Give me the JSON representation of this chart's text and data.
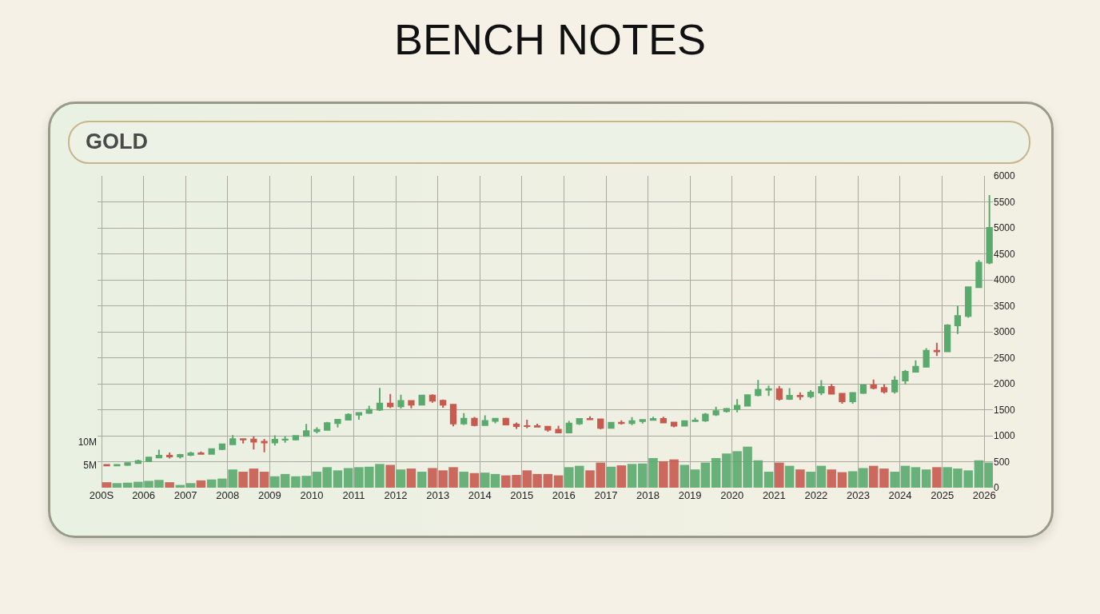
{
  "chart_data": {
    "type": "candlestick",
    "title": "BENCH NOTES",
    "subtitle": "GOLD",
    "x": [
      "2005-02-15",
      "2005-05-15",
      "2005-08-15",
      "2005-11-15",
      "2006-02-15",
      "2006-05-15",
      "2006-08-15",
      "2006-11-15",
      "2007-02-15",
      "2007-05-15",
      "2007-08-15",
      "2007-11-15",
      "2008-02-15",
      "2008-05-15",
      "2008-08-15",
      "2008-11-15",
      "2009-02-15",
      "2009-05-15",
      "2009-08-15",
      "2009-11-15",
      "2010-02-15",
      "2010-05-15",
      "2010-08-15",
      "2010-11-15",
      "2011-02-15",
      "2011-05-15",
      "2011-08-15",
      "2011-11-15",
      "2012-02-15",
      "2012-05-15",
      "2012-08-15",
      "2012-11-15",
      "2013-02-15",
      "2013-05-15",
      "2013-08-15",
      "2013-11-15",
      "2014-02-15",
      "2014-05-15",
      "2014-08-15",
      "2014-11-15",
      "2015-02-15",
      "2015-05-15",
      "2015-08-15",
      "2015-11-15",
      "2016-02-15",
      "2016-05-15",
      "2016-08-15",
      "2016-11-15",
      "2017-02-15",
      "2017-05-15",
      "2017-08-15",
      "2017-11-15",
      "2018-02-15",
      "2018-05-15",
      "2018-08-15",
      "2018-11-15",
      "2019-02-15",
      "2019-05-15",
      "2019-08-15",
      "2019-11-15",
      "2020-02-15",
      "2020-05-15",
      "2020-08-15",
      "2020-11-15",
      "2021-02-15",
      "2021-05-15",
      "2021-08-15",
      "2021-11-15",
      "2022-02-15",
      "2022-05-15",
      "2022-08-15",
      "2022-11-15",
      "2023-02-15",
      "2023-05-15",
      "2023-08-15",
      "2023-11-15",
      "2024-02-15",
      "2024-05-15",
      "2024-08-15",
      "2024-11-15",
      "2025-02-15",
      "2025-05-15",
      "2025-08-15",
      "2025-11-15",
      "2026-02-15"
    ],
    "series": [
      {
        "ohlc": [
          [
            438,
            445,
            411,
            428
          ],
          [
            428,
            443,
            414,
            437
          ],
          [
            437,
            475,
            418,
            473
          ],
          [
            473,
            538,
            456,
            513
          ],
          [
            513,
            584,
            506,
            582
          ],
          [
            582,
            730,
            567,
            614
          ],
          [
            614,
            676,
            560,
            599
          ],
          [
            599,
            650,
            560,
            632
          ],
          [
            632,
            691,
            606,
            662
          ],
          [
            662,
            696,
            640,
            650
          ],
          [
            650,
            745,
            642,
            743
          ],
          [
            743,
            845,
            723,
            834
          ],
          [
            834,
            1011,
            820,
            933
          ],
          [
            933,
            945,
            850,
            926
          ],
          [
            926,
            988,
            735,
            884
          ],
          [
            884,
            940,
            681,
            869
          ],
          [
            869,
            1006,
            810,
            924
          ],
          [
            924,
            990,
            865,
            927
          ],
          [
            927,
            1011,
            908,
            996
          ],
          [
            996,
            1226,
            995,
            1087
          ],
          [
            1087,
            1161,
            1045,
            1113
          ],
          [
            1113,
            1265,
            1110,
            1244
          ],
          [
            1244,
            1315,
            1157,
            1307
          ],
          [
            1307,
            1431,
            1306,
            1405
          ],
          [
            1405,
            1447,
            1308,
            1439
          ],
          [
            1439,
            1577,
            1418,
            1500
          ],
          [
            1500,
            1920,
            1478,
            1620
          ],
          [
            1620,
            1803,
            1530,
            1566
          ],
          [
            1566,
            1790,
            1523,
            1668
          ],
          [
            1668,
            1680,
            1527,
            1598
          ],
          [
            1598,
            1790,
            1580,
            1772
          ],
          [
            1772,
            1795,
            1636,
            1675
          ],
          [
            1675,
            1696,
            1540,
            1598
          ],
          [
            1598,
            1600,
            1180,
            1234
          ],
          [
            1234,
            1434,
            1208,
            1328
          ],
          [
            1328,
            1361,
            1180,
            1202
          ],
          [
            1202,
            1392,
            1202,
            1283
          ],
          [
            1283,
            1332,
            1240,
            1327
          ],
          [
            1327,
            1345,
            1205,
            1216
          ],
          [
            1216,
            1255,
            1131,
            1184
          ],
          [
            1184,
            1307,
            1142,
            1183
          ],
          [
            1183,
            1232,
            1162,
            1172
          ],
          [
            1172,
            1174,
            1077,
            1115
          ],
          [
            1115,
            1191,
            1046,
            1061
          ],
          [
            1061,
            1283,
            1061,
            1235
          ],
          [
            1235,
            1325,
            1208,
            1322
          ],
          [
            1322,
            1375,
            1300,
            1315
          ],
          [
            1315,
            1318,
            1123,
            1151
          ],
          [
            1151,
            1263,
            1146,
            1249
          ],
          [
            1249,
            1295,
            1215,
            1242
          ],
          [
            1242,
            1358,
            1204,
            1280
          ],
          [
            1280,
            1307,
            1236,
            1303
          ],
          [
            1303,
            1366,
            1303,
            1325
          ],
          [
            1325,
            1365,
            1237,
            1252
          ],
          [
            1252,
            1265,
            1160,
            1192
          ],
          [
            1192,
            1288,
            1180,
            1282
          ],
          [
            1282,
            1346,
            1266,
            1292
          ],
          [
            1292,
            1439,
            1266,
            1409
          ],
          [
            1409,
            1557,
            1381,
            1472
          ],
          [
            1472,
            1535,
            1446,
            1517
          ],
          [
            1517,
            1703,
            1451,
            1577
          ],
          [
            1577,
            1788,
            1568,
            1781
          ],
          [
            1781,
            2075,
            1757,
            1886
          ],
          [
            1886,
            1966,
            1765,
            1895
          ],
          [
            1895,
            1959,
            1677,
            1708
          ],
          [
            1708,
            1916,
            1690,
            1770
          ],
          [
            1770,
            1834,
            1688,
            1757
          ],
          [
            1757,
            1877,
            1721,
            1829
          ],
          [
            1829,
            2070,
            1780,
            1937
          ],
          [
            1937,
            1998,
            1805,
            1807
          ],
          [
            1807,
            1807,
            1614,
            1660
          ],
          [
            1660,
            1833,
            1617,
            1824
          ],
          [
            1824,
            1988,
            1805,
            1969
          ],
          [
            1969,
            2081,
            1893,
            1919
          ],
          [
            1919,
            1987,
            1810,
            1849
          ],
          [
            1849,
            2146,
            1810,
            2063
          ],
          [
            2063,
            2265,
            1985,
            2230
          ],
          [
            2230,
            2450,
            2220,
            2327
          ],
          [
            2327,
            2685,
            2310,
            2635
          ],
          [
            2635,
            2790,
            2536,
            2625
          ],
          [
            2625,
            3148,
            2615,
            3124
          ],
          [
            3124,
            3500,
            2957,
            3303
          ],
          [
            3303,
            3870,
            3270,
            3858
          ],
          [
            3858,
            4380,
            3850,
            4330
          ],
          [
            4330,
            5630,
            4300,
            5000
          ]
        ],
        "colors": [
          "#c85a4f",
          "#5aaa6e",
          "#5aaa6e",
          "#5aaa6e",
          "#5aaa6e",
          "#5aaa6e",
          "#c85a4f",
          "#5aaa6e",
          "#5aaa6e",
          "#c85a4f",
          "#5aaa6e",
          "#5aaa6e",
          "#5aaa6e",
          "#c85a4f",
          "#c85a4f",
          "#c85a4f",
          "#5aaa6e",
          "#5aaa6e",
          "#5aaa6e",
          "#5aaa6e",
          "#5aaa6e",
          "#5aaa6e",
          "#5aaa6e",
          "#5aaa6e",
          "#5aaa6e",
          "#5aaa6e",
          "#5aaa6e",
          "#c85a4f",
          "#5aaa6e",
          "#c85a4f",
          "#5aaa6e",
          "#c85a4f",
          "#c85a4f",
          "#c85a4f",
          "#5aaa6e",
          "#c85a4f",
          "#5aaa6e",
          "#5aaa6e",
          "#c85a4f",
          "#c85a4f",
          "#c85a4f",
          "#c85a4f",
          "#c85a4f",
          "#c85a4f",
          "#5aaa6e",
          "#5aaa6e",
          "#c85a4f",
          "#c85a4f",
          "#5aaa6e",
          "#c85a4f",
          "#5aaa6e",
          "#5aaa6e",
          "#5aaa6e",
          "#c85a4f",
          "#c85a4f",
          "#5aaa6e",
          "#5aaa6e",
          "#5aaa6e",
          "#5aaa6e",
          "#5aaa6e",
          "#5aaa6e",
          "#5aaa6e",
          "#5aaa6e",
          "#5aaa6e",
          "#c85a4f",
          "#5aaa6e",
          "#c85a4f",
          "#5aaa6e",
          "#5aaa6e",
          "#c85a4f",
          "#c85a4f",
          "#5aaa6e",
          "#5aaa6e",
          "#c85a4f",
          "#c85a4f",
          "#5aaa6e",
          "#5aaa6e",
          "#5aaa6e",
          "#5aaa6e",
          "#c85a4f",
          "#5aaa6e",
          "#5aaa6e",
          "#5aaa6e",
          "#5aaa6e",
          "#5aaa6e"
        ]
      },
      {
        "type": "bar",
        "axis": "y2",
        "values": [
          1200000,
          1000000,
          1100000,
          1300000,
          1500000,
          1700000,
          1200000,
          600000,
          1000000,
          1600000,
          1800000,
          2000000,
          4000000,
          3500000,
          4200000,
          3500000,
          2500000,
          3000000,
          2500000,
          2600000,
          3500000,
          4500000,
          3800000,
          4300000,
          4500000,
          4600000,
          5200000,
          5000000,
          4000000,
          4200000,
          3500000,
          4300000,
          3800000,
          4500000,
          3500000,
          3200000,
          3300000,
          3000000,
          2700000,
          2800000,
          3800000,
          3000000,
          3000000,
          2700000,
          4500000,
          4800000,
          3800000,
          5500000,
          4600000,
          4900000,
          5200000,
          5300000,
          6500000,
          5800000,
          6200000,
          5000000,
          4000000,
          5500000,
          6500000,
          7500000,
          8000000,
          9000000,
          6000000,
          3500000,
          5500000,
          4800000,
          4000000,
          3500000,
          4800000,
          4000000,
          3400000,
          3600000,
          4300000,
          4800000,
          4200000,
          3500000,
          4800000,
          4500000,
          4000000,
          4500000,
          4500000,
          4200000,
          3800000,
          6000000,
          5500000
        ],
        "colors": [
          "#c85a4f",
          "#5aaa6e",
          "#5aaa6e",
          "#5aaa6e",
          "#5aaa6e",
          "#5aaa6e",
          "#c85a4f",
          "#5aaa6e",
          "#5aaa6e",
          "#c85a4f",
          "#5aaa6e",
          "#5aaa6e",
          "#5aaa6e",
          "#c85a4f",
          "#c85a4f",
          "#c85a4f",
          "#5aaa6e",
          "#5aaa6e",
          "#5aaa6e",
          "#5aaa6e",
          "#5aaa6e",
          "#5aaa6e",
          "#5aaa6e",
          "#5aaa6e",
          "#5aaa6e",
          "#5aaa6e",
          "#5aaa6e",
          "#c85a4f",
          "#5aaa6e",
          "#c85a4f",
          "#5aaa6e",
          "#c85a4f",
          "#c85a4f",
          "#c85a4f",
          "#5aaa6e",
          "#c85a4f",
          "#5aaa6e",
          "#5aaa6e",
          "#c85a4f",
          "#c85a4f",
          "#c85a4f",
          "#c85a4f",
          "#c85a4f",
          "#c85a4f",
          "#5aaa6e",
          "#5aaa6e",
          "#c85a4f",
          "#c85a4f",
          "#5aaa6e",
          "#c85a4f",
          "#5aaa6e",
          "#5aaa6e",
          "#5aaa6e",
          "#c85a4f",
          "#c85a4f",
          "#5aaa6e",
          "#5aaa6e",
          "#5aaa6e",
          "#5aaa6e",
          "#5aaa6e",
          "#5aaa6e",
          "#5aaa6e",
          "#5aaa6e",
          "#5aaa6e",
          "#c85a4f",
          "#5aaa6e",
          "#c85a4f",
          "#5aaa6e",
          "#5aaa6e",
          "#c85a4f",
          "#c85a4f",
          "#5aaa6e",
          "#5aaa6e",
          "#c85a4f",
          "#c85a4f",
          "#5aaa6e",
          "#5aaa6e",
          "#5aaa6e",
          "#5aaa6e",
          "#c85a4f",
          "#5aaa6e",
          "#5aaa6e",
          "#5aaa6e",
          "#5aaa6e",
          "#5aaa6e"
        ]
      }
    ],
    "xlim": [
      "2004-11-27",
      "2026-03-17"
    ],
    "xticks": [
      {
        "value": "2005",
        "label": "200S"
      },
      {
        "value": "2006",
        "label": "2006"
      },
      {
        "value": "2007",
        "label": "2007"
      },
      {
        "value": "2008",
        "label": "2008"
      },
      {
        "value": "2009",
        "label": "2009"
      },
      {
        "value": "2010",
        "label": "2010"
      },
      {
        "value": "2011",
        "label": "2011"
      },
      {
        "value": "2012",
        "label": "2012"
      },
      {
        "value": "2013",
        "label": "2013"
      },
      {
        "value": "2014",
        "label": "2014"
      },
      {
        "value": "2015",
        "label": "2015"
      },
      {
        "value": "2016",
        "label": "2016"
      },
      {
        "value": "2017",
        "label": "2017"
      },
      {
        "value": "2018",
        "label": "2018"
      },
      {
        "value": "2019",
        "label": "2019"
      },
      {
        "value": "2020",
        "label": "2020"
      },
      {
        "value": "2021",
        "label": "2021"
      },
      {
        "value": "2022",
        "label": "2022"
      },
      {
        "value": "2023",
        "label": "2023"
      },
      {
        "value": "2024",
        "label": "2024"
      },
      {
        "value": "2025",
        "label": "2025"
      },
      {
        "value": "2026",
        "label": "2026"
      }
    ],
    "ylim": [
      0,
      6000
    ],
    "yticks": [
      0,
      500,
      1000,
      1500,
      2000,
      2500,
      3000,
      3500,
      4000,
      4500,
      5000,
      5500,
      6000
    ],
    "y2lim": [
      0,
      68400000
    ],
    "y2ticks": [
      {
        "value": 5000000,
        "label": "5M"
      },
      {
        "value": 10000000,
        "label": "10M"
      }
    ],
    "grid": true
  }
}
